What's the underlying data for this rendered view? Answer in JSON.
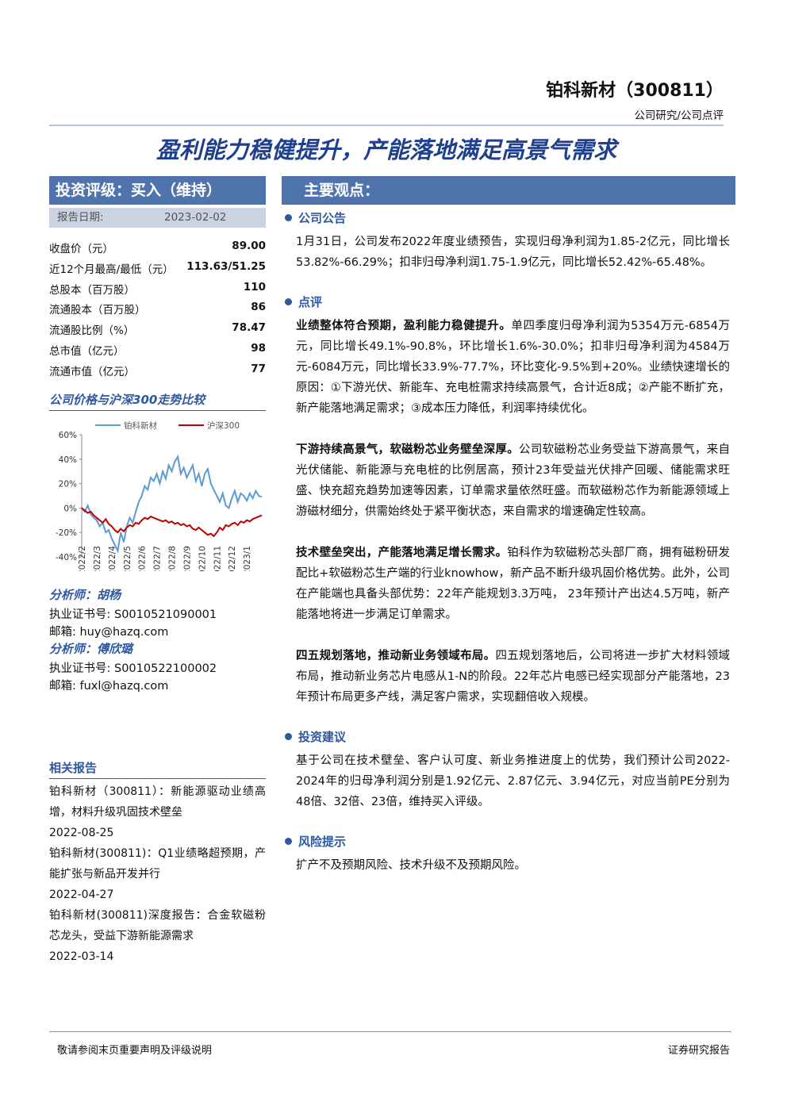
{
  "header": {
    "company": "铂科新材（300811）",
    "category": "公司研究/公司点评",
    "title": "盈利能力稳健提升，产能落地满足高景气需求"
  },
  "rating": {
    "label": "投资评级：买入（维持）",
    "date_label": "报告日期:",
    "date": "2023-02-02"
  },
  "stats": [
    {
      "label": "收盘价（元）",
      "value": "89.00"
    },
    {
      "label": "近12个月最高/最低（元）",
      "value": "113.63/51.25"
    },
    {
      "label": "总股本（百万股）",
      "value": "110"
    },
    {
      "label": "流通股本（百万股）",
      "value": "86"
    },
    {
      "label": "流通股比例（%）",
      "value": "78.47"
    },
    {
      "label": "总市值（亿元）",
      "value": "98"
    },
    {
      "label": "流通市值（亿元）",
      "value": "77"
    }
  ],
  "chart_heading": "公司价格与沪深300走势比较",
  "chart_data": {
    "type": "line",
    "categories": [
      "2022/2",
      null,
      null,
      null,
      null,
      "2022/3",
      null,
      null,
      null,
      null,
      "2022/4",
      null,
      null,
      null,
      null,
      "2022/5",
      null,
      null,
      null,
      null,
      "2022/6",
      null,
      null,
      null,
      null,
      "2022/7",
      null,
      null,
      null,
      null,
      "2022/8",
      null,
      null,
      null,
      null,
      "2022/9",
      null,
      null,
      null,
      null,
      "2022/10",
      null,
      null,
      null,
      null,
      "2022/11",
      null,
      null,
      null,
      null,
      "2022/12",
      null,
      null,
      null,
      null,
      "2023/1",
      null,
      null,
      null,
      null,
      null
    ],
    "series": [
      {
        "name": "铂科新材",
        "color": "#5b9bd5",
        "values": [
          0,
          -3,
          2,
          -5,
          -8,
          -10,
          -15,
          -12,
          -20,
          -18,
          -25,
          -30,
          -35,
          -20,
          -28,
          -15,
          -8,
          -12,
          -3,
          5,
          10,
          18,
          15,
          25,
          22,
          28,
          20,
          30,
          24,
          35,
          30,
          38,
          42,
          28,
          33,
          25,
          30,
          35,
          22,
          28,
          18,
          28,
          32,
          20,
          15,
          10,
          5,
          12,
          2,
          0,
          8,
          14,
          5,
          12,
          10,
          6,
          12,
          8,
          14,
          10,
          9
        ]
      },
      {
        "name": "沪深300",
        "color": "#c00000",
        "values": [
          0,
          -2,
          -4,
          -3,
          -6,
          -8,
          -10,
          -12,
          -9,
          -13,
          -15,
          -18,
          -20,
          -17,
          -19,
          -16,
          -14,
          -15,
          -12,
          -13,
          -10,
          -8,
          -9,
          -7,
          -8,
          -9,
          -10,
          -11,
          -10,
          -12,
          -11,
          -13,
          -12,
          -14,
          -13,
          -15,
          -14,
          -17,
          -18,
          -16,
          -18,
          -20,
          -22,
          -21,
          -23,
          -20,
          -16,
          -18,
          -14,
          -15,
          -13,
          -12,
          -14,
          -11,
          -12,
          -10,
          -11,
          -9,
          -8,
          -7,
          -6
        ]
      }
    ],
    "ylim": [
      -40,
      60
    ],
    "yticks": [
      {
        "value": -40,
        "label": "-40%"
      },
      {
        "value": -20,
        "label": "-20%"
      },
      {
        "value": 0,
        "label": "0%"
      },
      {
        "value": 20,
        "label": "20%"
      },
      {
        "value": 40,
        "label": "40%"
      },
      {
        "value": 60,
        "label": "60%"
      }
    ]
  },
  "analysts": [
    {
      "heading": "分析师：胡杨",
      "cert": "执业证书号: S0010521090001",
      "email": "邮箱: huy@hazq.com"
    },
    {
      "heading": "分析师：傅欣璐",
      "cert": "执业证书号: S0010522100002",
      "email": "邮箱: fuxl@hazq.com"
    }
  ],
  "related": {
    "heading": "相关报告",
    "items": [
      {
        "title": "铂科新材（300811）：新能源驱动业绩高增，材料升级巩固技术壁垒",
        "date": "2022-08-25"
      },
      {
        "title": "铂科新材(300811)：Q1业绩略超预期，产能扩张与新品开发并行",
        "date": "2022-04-27"
      },
      {
        "title": "铂科新材(300811)深度报告：合金软磁粉芯龙头，受益下游新能源需求",
        "date": "2022-03-14"
      }
    ]
  },
  "main_heading": "主要观点：",
  "sections": [
    {
      "heading": "公司公告",
      "paragraphs": [
        {
          "lead": "",
          "text": "1月31日，公司发布2022年度业绩预告，实现归母净利润为1.85-2亿元，同比增长53.82%-66.29%；扣非归母净利润1.75-1.9亿元，同比增长52.42%-65.48%。"
        }
      ]
    },
    {
      "heading": "点评",
      "paragraphs": [
        {
          "lead": "业绩整体符合预期，盈利能力稳健提升。",
          "text": "单四季度归母净利润为5354万元-6854万元，同比增长49.1%-90.8%，环比增长1.6%-30.0%；扣非归母净利润为4584万元-6084万元，同比增长33.9%-77.7%，环比变化-9.5%到+20%。业绩快速增长的原因：①下游光伏、新能车、充电桩需求持续高景气，合计近8成；②产能不断扩充，新产能落地满足需求；③成本压力降低，利润率持续优化。"
        },
        {
          "lead": "下游持续高景气，软磁粉芯业务壁垒深厚。",
          "text": "公司软磁粉芯业务受益下游高景气，来自光伏储能、新能源与充电桩的比例居高，预计23年受益光伏排产回暖、储能需求旺盛、快充超充趋势加速等因素，订单需求量依然旺盛。而软磁粉芯作为新能源领域上游磁材细分，供需始终处于紧平衡状态，来自需求的增速确定性较高。"
        },
        {
          "lead": "技术壁垒突出，产能落地满足增长需求。",
          "text": "铂科作为软磁粉芯头部厂商，拥有磁粉研发配比+软磁粉芯生产端的行业knowhow，新产品不断升级巩固价格优势。此外，公司在产能端也具备头部优势：22年产能规划3.3万吨， 23年预计产出达4.5万吨，新产能落地将进一步满足订单需求。"
        },
        {
          "lead": "四五规划落地，推动新业务领域布局。",
          "text": "四五规划落地后，公司将进一步扩大材料领域布局，推动新业务芯片电感从1-N的阶段。22年芯片电感已经实现部分产能落地，23年预计布局更多产线，满足客户需求，实现翻倍收入规模。"
        }
      ]
    },
    {
      "heading": "投资建议",
      "paragraphs": [
        {
          "lead": "",
          "text": "基于公司在技术壁垒、客户认可度、新业务推进度上的优势，我们预计公司2022-2024年的归母净利润分别是1.92亿元、2.87亿元、3.94亿元，对应当前PE分别为48倍、32倍、23倍，维持买入评级。"
        }
      ]
    },
    {
      "heading": "风险提示",
      "paragraphs": [
        {
          "lead": "",
          "text": "扩产不及预期风险、技术升级不及预期风险。"
        }
      ]
    }
  ],
  "footer": {
    "left": "敬请参阅末页重要声明及评级说明",
    "right": "证券研究报告"
  }
}
